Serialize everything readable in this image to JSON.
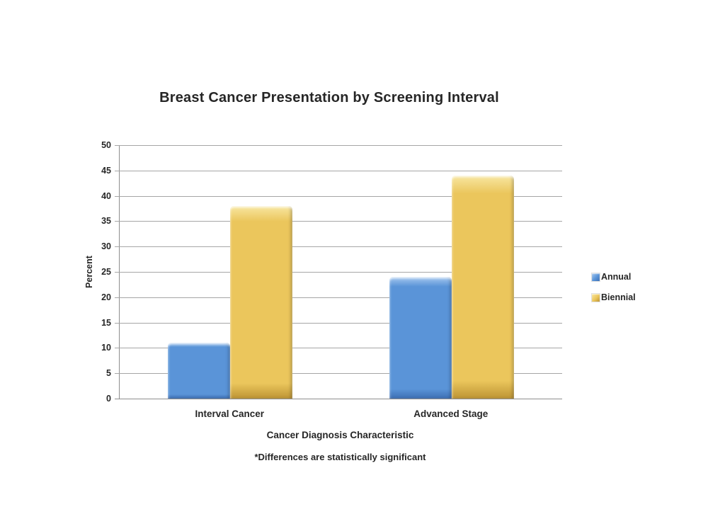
{
  "chart_data": {
    "type": "bar",
    "title": "Breast Cancer Presentation by Screening Interval",
    "xlabel": "Cancer Diagnosis Characteristic",
    "ylabel": "Percent",
    "footnote": "*Differences are statistically significant",
    "categories": [
      "Interval Cancer",
      "Advanced Stage"
    ],
    "series": [
      {
        "name": "Annual",
        "values": [
          11,
          24
        ],
        "color": "#5a94d8",
        "color_light": "#a7c9ef",
        "color_dark": "#3d6fb4"
      },
      {
        "name": "Biennial",
        "values": [
          38,
          44
        ],
        "color": "#ebc65c",
        "color_light": "#f8e7a2",
        "color_dark": "#bd9434"
      }
    ],
    "ylim": [
      0,
      50
    ],
    "ytick_step": 5,
    "yticks": [
      0,
      5,
      10,
      15,
      20,
      25,
      30,
      35,
      40,
      45,
      50
    ],
    "grid": true,
    "legend_position": "right",
    "grid_color": "#a6a6a6",
    "axis_color": "#8e8e8e",
    "text_color": "#262626",
    "background_color": "#ffffff"
  }
}
